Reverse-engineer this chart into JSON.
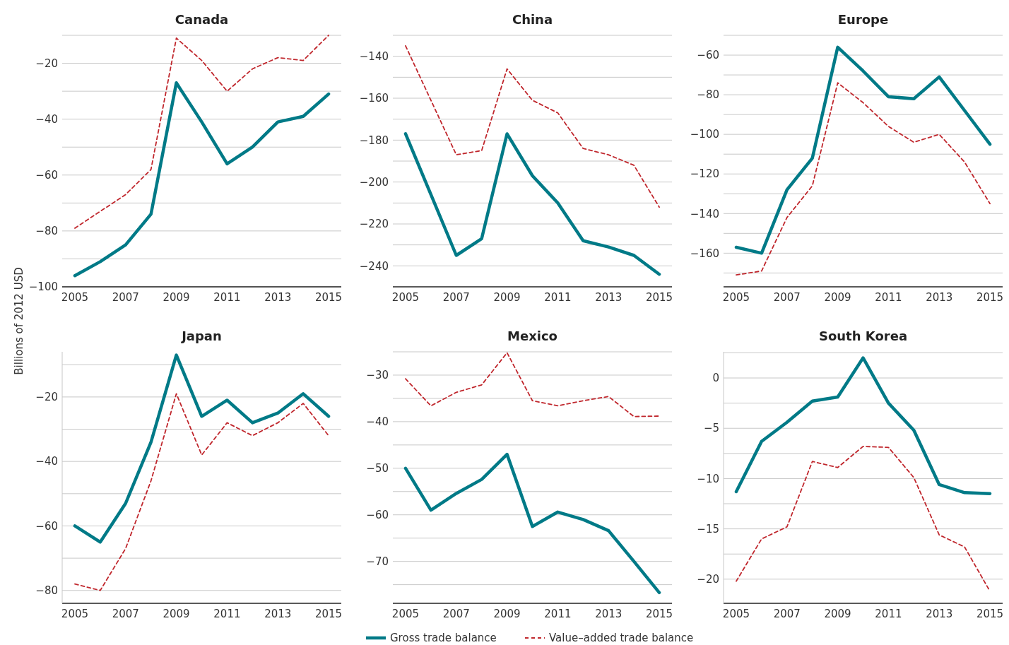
{
  "chart_data": [
    {
      "type": "line",
      "title": "Canada",
      "ylabel": "Billions of 2012 USD",
      "legend": "bottom",
      "grid": "y",
      "line_style": "solid",
      "x": [
        2005,
        2006,
        2007,
        2008,
        2009,
        2010,
        2011,
        2012,
        2013,
        2014,
        2015
      ],
      "xlim": [
        2004.5,
        2015.5
      ],
      "xticks": [
        2005,
        2007,
        2009,
        2011,
        2013,
        2015
      ],
      "ylim": [
        -100,
        -10
      ],
      "yticks": [
        {
          "value": -100,
          "label": "−100"
        },
        {
          "value": -90,
          "label": null
        },
        {
          "value": -80,
          "label": "−80"
        },
        {
          "value": -70,
          "label": null
        },
        {
          "value": -60,
          "label": "−60"
        },
        {
          "value": -50,
          "label": null
        },
        {
          "value": -40,
          "label": "−40"
        },
        {
          "value": -30,
          "label": null
        },
        {
          "value": -20,
          "label": "−20"
        },
        {
          "value": -10,
          "label": null
        }
      ],
      "series": [
        {
          "name": "Gross trade balance",
          "color": "#007a87",
          "values": [
            -96,
            -91,
            -85,
            -74,
            -27,
            -41,
            -56,
            -50,
            -41,
            -39,
            -31
          ]
        },
        {
          "name": "Value–added trade balance",
          "color": "#c0272d",
          "line_style": "dashed",
          "values": [
            -79,
            -73,
            -67,
            -58,
            -11,
            -19,
            -30,
            -22,
            -18,
            -19,
            -10
          ]
        }
      ]
    },
    {
      "type": "line",
      "title": "China",
      "grid": "y",
      "line_style": "solid",
      "x": [
        2005,
        2006,
        2007,
        2008,
        2009,
        2010,
        2011,
        2012,
        2013,
        2014,
        2015
      ],
      "xlim": [
        2004.5,
        2015.5
      ],
      "xticks": [
        2005,
        2007,
        2009,
        2011,
        2013,
        2015
      ],
      "ylim": [
        -250,
        -130
      ],
      "yticks": [
        {
          "value": -240,
          "label": "−240"
        },
        {
          "value": -230,
          "label": null
        },
        {
          "value": -220,
          "label": "−220"
        },
        {
          "value": -210,
          "label": null
        },
        {
          "value": -200,
          "label": "−200"
        },
        {
          "value": -190,
          "label": null
        },
        {
          "value": -180,
          "label": "−180"
        },
        {
          "value": -170,
          "label": null
        },
        {
          "value": -160,
          "label": "−160"
        },
        {
          "value": -150,
          "label": null
        },
        {
          "value": -140,
          "label": "−140"
        },
        {
          "value": -130,
          "label": null
        }
      ],
      "series": [
        {
          "name": "Gross trade balance",
          "color": "#007a87",
          "values": [
            -177,
            -206,
            -235,
            -227,
            -177,
            -197,
            -210,
            -228,
            -231,
            -235,
            -244
          ]
        },
        {
          "name": "Value–added trade balance",
          "color": "#c0272d",
          "line_style": "dashed",
          "values": [
            -135,
            -161,
            -187,
            -185,
            -146,
            -161,
            -167,
            -184,
            -187,
            -192,
            -212
          ]
        }
      ]
    },
    {
      "type": "line",
      "title": "Europe",
      "grid": "y",
      "line_style": "solid",
      "x": [
        2005,
        2006,
        2007,
        2008,
        2009,
        2010,
        2011,
        2012,
        2013,
        2014,
        2015
      ],
      "xlim": [
        2004.5,
        2015.5
      ],
      "xticks": [
        2005,
        2007,
        2009,
        2011,
        2013,
        2015
      ],
      "ylim": [
        -177,
        -50
      ],
      "yticks": [
        {
          "value": -170,
          "label": null
        },
        {
          "value": -160,
          "label": "−160"
        },
        {
          "value": -150,
          "label": null
        },
        {
          "value": -140,
          "label": "−140"
        },
        {
          "value": -130,
          "label": null
        },
        {
          "value": -120,
          "label": "−120"
        },
        {
          "value": -110,
          "label": null
        },
        {
          "value": -100,
          "label": "−100"
        },
        {
          "value": -90,
          "label": null
        },
        {
          "value": -80,
          "label": "−80"
        },
        {
          "value": -70,
          "label": null
        },
        {
          "value": -60,
          "label": "−60"
        },
        {
          "value": -50,
          "label": null
        }
      ],
      "series": [
        {
          "name": "Gross trade balance",
          "color": "#007a87",
          "values": [
            -157,
            -160,
            -128,
            -112,
            -56,
            -68,
            -81,
            -82,
            -71,
            -88,
            -105
          ]
        },
        {
          "name": "Value–added trade balance",
          "color": "#c0272d",
          "line_style": "dashed",
          "values": [
            -171,
            -169,
            -142,
            -126,
            -74,
            -84,
            -96,
            -104,
            -100,
            -114,
            -135
          ]
        }
      ]
    },
    {
      "type": "line",
      "title": "Japan",
      "grid": "y",
      "line_style": "solid",
      "x": [
        2005,
        2006,
        2007,
        2008,
        2009,
        2010,
        2011,
        2012,
        2013,
        2014,
        2015
      ],
      "xlim": [
        2004.5,
        2015.5
      ],
      "xticks": [
        2005,
        2007,
        2009,
        2011,
        2013,
        2015
      ],
      "ylim": [
        -84,
        -6
      ],
      "yticks": [
        {
          "value": -80,
          "label": "−80"
        },
        {
          "value": -70,
          "label": null
        },
        {
          "value": -60,
          "label": "−60"
        },
        {
          "value": -50,
          "label": null
        },
        {
          "value": -40,
          "label": "−40"
        },
        {
          "value": -30,
          "label": null
        },
        {
          "value": -20,
          "label": "−20"
        },
        {
          "value": -10,
          "label": null
        }
      ],
      "series": [
        {
          "name": "Gross trade balance",
          "color": "#007a87",
          "values": [
            -60,
            -65,
            -53,
            -34,
            -7,
            -26,
            -21,
            -28,
            -25,
            -19,
            -26
          ]
        },
        {
          "name": "Value–added trade balance",
          "color": "#c0272d",
          "line_style": "dashed",
          "values": [
            -78,
            -80,
            -67,
            -46,
            -19,
            -38,
            -28,
            -32,
            -28,
            -22,
            -32
          ]
        }
      ]
    },
    {
      "type": "line",
      "title": "Mexico",
      "grid": "y",
      "line_style": "solid",
      "x": [
        2005,
        2006,
        2007,
        2008,
        2009,
        2010,
        2011,
        2012,
        2013,
        2014,
        2015
      ],
      "xlim": [
        2004.5,
        2015.5
      ],
      "xticks": [
        2005,
        2007,
        2009,
        2011,
        2013,
        2015
      ],
      "ylim": [
        -79,
        -25
      ],
      "yticks": [
        {
          "value": -75,
          "label": null
        },
        {
          "value": -70,
          "label": "−70"
        },
        {
          "value": -65,
          "label": null
        },
        {
          "value": -60,
          "label": "−60"
        },
        {
          "value": -55,
          "label": null
        },
        {
          "value": -50,
          "label": "−50"
        },
        {
          "value": -45,
          "label": null
        },
        {
          "value": -40,
          "label": "−40"
        },
        {
          "value": -35,
          "label": null
        },
        {
          "value": -30,
          "label": "−30"
        },
        {
          "value": -25,
          "label": null
        }
      ],
      "series": [
        {
          "name": "Gross trade balance",
          "color": "#007a87",
          "values": [
            -50,
            -59,
            -55.4,
            -52.4,
            -47,
            -62.5,
            -59.4,
            -61,
            -63.4,
            -70,
            -76.7
          ]
        },
        {
          "name": "Value–added trade balance",
          "color": "#c0272d",
          "line_style": "dashed",
          "values": [
            -30.8,
            -36.6,
            -33.7,
            -32.1,
            -25.2,
            -35.5,
            -36.6,
            -35.5,
            -34.6,
            -38.9,
            -38.8
          ]
        }
      ]
    },
    {
      "type": "line",
      "title": "South Korea",
      "grid": "y",
      "line_style": "solid",
      "x": [
        2005,
        2006,
        2007,
        2008,
        2009,
        2010,
        2011,
        2012,
        2013,
        2014,
        2015
      ],
      "xlim": [
        2004.5,
        2015.5
      ],
      "xticks": [
        2005,
        2007,
        2009,
        2011,
        2013,
        2015
      ],
      "ylim": [
        -22.4,
        2.6
      ],
      "yticks": [
        {
          "value": -20,
          "label": "−20"
        },
        {
          "value": -17.5,
          "label": null
        },
        {
          "value": -15,
          "label": "−15"
        },
        {
          "value": -12.5,
          "label": null
        },
        {
          "value": -10,
          "label": "−10"
        },
        {
          "value": -7.5,
          "label": null
        },
        {
          "value": -5,
          "label": "−5"
        },
        {
          "value": -2.5,
          "label": null
        },
        {
          "value": 0,
          "label": "0"
        },
        {
          "value": 2.5,
          "label": null
        }
      ],
      "series": [
        {
          "name": "Gross trade balance",
          "color": "#007a87",
          "values": [
            -11.3,
            -6.3,
            -4.4,
            -2.3,
            -1.9,
            2,
            -2.5,
            -5.2,
            -10.6,
            -11.4,
            -11.5
          ]
        },
        {
          "name": "Value–added trade balance",
          "color": "#c0272d",
          "line_style": "dashed",
          "values": [
            -20.2,
            -16,
            -14.8,
            -8.3,
            -8.9,
            -6.8,
            -6.9,
            -9.9,
            -15.6,
            -16.8,
            -21.2
          ]
        }
      ]
    }
  ]
}
